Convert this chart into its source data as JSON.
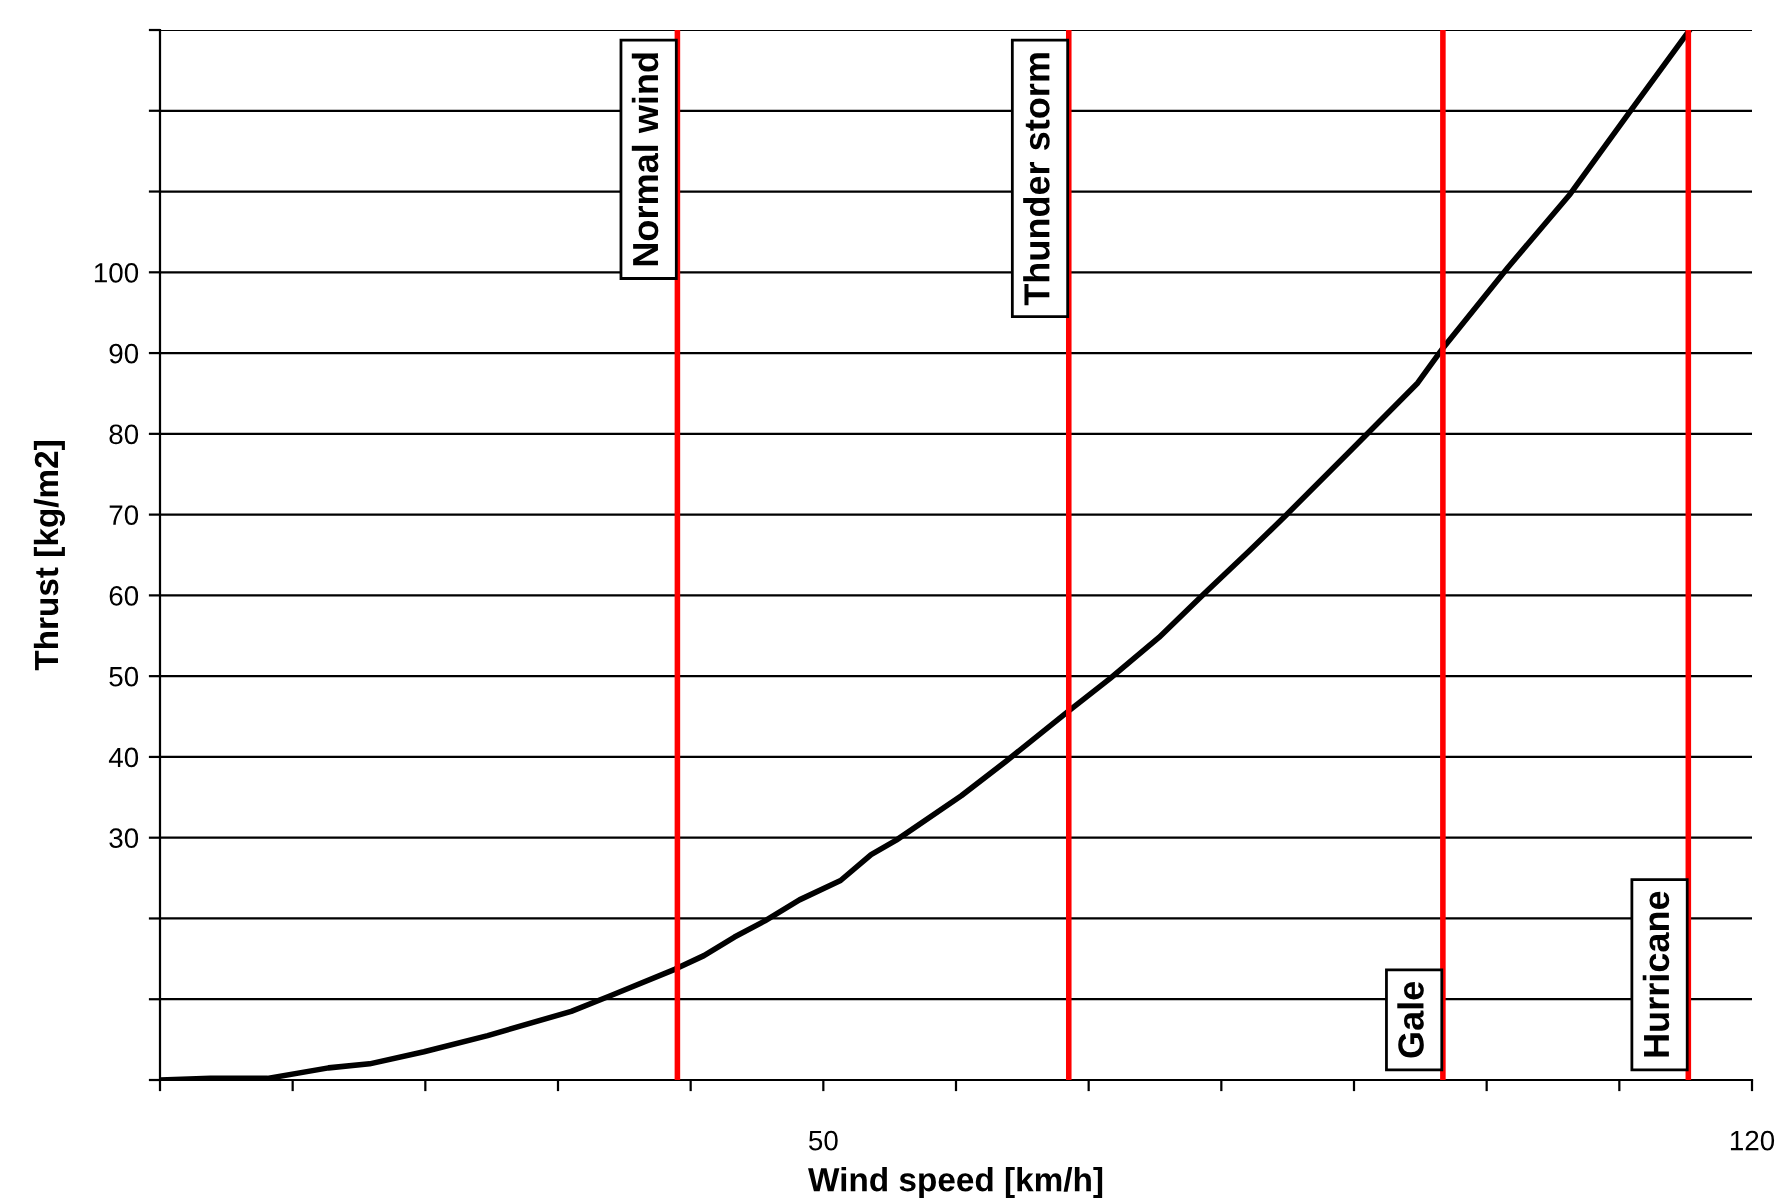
{
  "chart_data": {
    "type": "line",
    "xlabel": "Wind speed [km/h]",
    "ylabel": "Thrust [kg/m2]",
    "series": [
      {
        "color": "#000000",
        "x": [
          0,
          3.8,
          8.1,
          12.7,
          15.8,
          19.9,
          24.7,
          31,
          33.9,
          38.8,
          41,
          43.3,
          45.6,
          48.2,
          51.3,
          53.6,
          55.5,
          60.4,
          63.8,
          68.5,
          71.6,
          75.3,
          78.7,
          82.1,
          84.8,
          89.6,
          94.8,
          96.7,
          101.6,
          106.3,
          110.8,
          115.3
        ],
        "values": [
          0,
          0.2,
          0.2,
          1.5,
          2,
          3.5,
          5.5,
          8.5,
          10.4,
          13.7,
          15.4,
          17.7,
          19.7,
          22.3,
          24.7,
          27.9,
          29.7,
          35.2,
          39.5,
          45.7,
          49.7,
          54.8,
          60.2,
          65.5,
          69.8,
          77.7,
          86.3,
          90.6,
          100.6,
          109.7,
          119.9,
          130
        ]
      }
    ],
    "xlim": [
      0,
      120
    ],
    "ylim": [
      0,
      130
    ],
    "xticks": [
      {
        "value": 0,
        "label": null
      },
      {
        "value": 10,
        "label": null
      },
      {
        "value": 20,
        "label": null
      },
      {
        "value": 30,
        "label": null
      },
      {
        "value": 40,
        "label": null
      },
      50,
      {
        "value": 60,
        "label": null
      },
      {
        "value": 70,
        "label": null
      },
      {
        "value": 80,
        "label": null
      },
      {
        "value": 90,
        "label": null
      },
      {
        "value": 100,
        "label": null
      },
      {
        "value": 110,
        "label": null
      },
      120
    ],
    "yticks": [
      {
        "value": 0,
        "label": null
      },
      {
        "value": 10,
        "label": null
      },
      {
        "value": 20,
        "label": null
      },
      30,
      40,
      50,
      60,
      70,
      80,
      90,
      100,
      {
        "value": 110,
        "label": null
      },
      {
        "value": 120,
        "label": null
      },
      {
        "value": 130,
        "label": null
      }
    ],
    "grid": "y",
    "marker": "none",
    "line_style": "solid",
    "ref_lines": [
      {
        "axis": "x",
        "value": 39,
        "label": "Normal wind",
        "color": "#ff0000"
      },
      {
        "axis": "x",
        "value": 68.5,
        "label": "Thunder storm",
        "color": "#ff0000"
      },
      {
        "axis": "x",
        "value": 96.7,
        "label": "Gale",
        "color": "#ff0000"
      },
      {
        "axis": "x",
        "value": 115.2,
        "label": "Hurricane",
        "color": "#ff0000"
      }
    ]
  }
}
